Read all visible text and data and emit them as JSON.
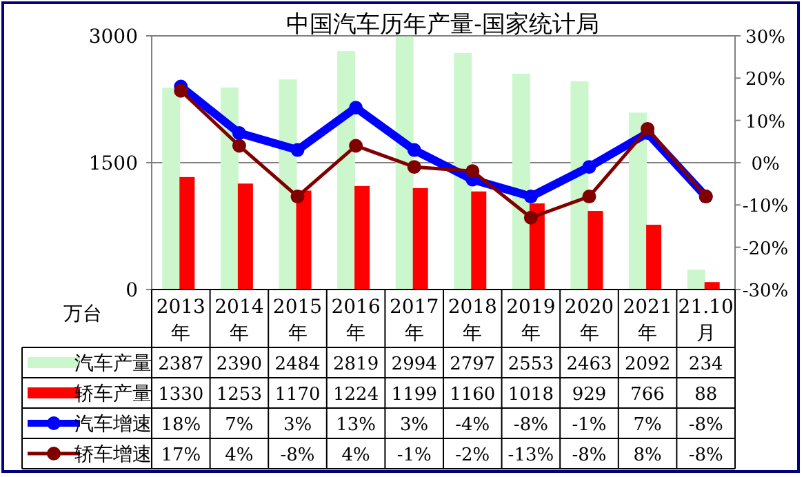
{
  "chart_data": {
    "type": "bar",
    "title": "中国汽车历年产量-国家统计局",
    "ylabel": "万台",
    "categories": [
      "2013年",
      "2014年",
      "2015年",
      "2016年",
      "2017年",
      "2018年",
      "2019年",
      "2020年",
      "2021年",
      "21.10月"
    ],
    "series": [
      {
        "name": "汽车产量",
        "type": "bar",
        "color": "#ccf7cc",
        "values": [
          2387,
          2390,
          2484,
          2819,
          2994,
          2797,
          2553,
          2463,
          2092,
          234
        ],
        "value_labels": [
          "2387",
          "2390",
          "2484",
          "2819",
          "2994",
          "2797",
          "2553",
          "2463",
          "2092",
          "234"
        ]
      },
      {
        "name": "轿车产量",
        "type": "bar",
        "color": "#ff0000",
        "values": [
          1330,
          1253,
          1170,
          1224,
          1199,
          1160,
          1018,
          929,
          766,
          88
        ],
        "value_labels": [
          "1330",
          "1253",
          "1170",
          "1224",
          "1199",
          "1160",
          "1018",
          "929",
          "766",
          "88"
        ]
      },
      {
        "name": "汽车增速",
        "type": "line",
        "axis": "y2",
        "color": "#0000ff",
        "values": [
          18,
          7,
          3,
          13,
          3,
          -4,
          -8,
          -1,
          7,
          -8
        ],
        "value_labels": [
          "18%",
          "7%",
          "3%",
          "13%",
          "3%",
          "-4%",
          "-8%",
          "-1%",
          "7%",
          "-8%"
        ]
      },
      {
        "name": "轿车增速",
        "type": "line",
        "axis": "y2",
        "color": "#800000",
        "values": [
          17,
          4,
          -8,
          4,
          -1,
          -2,
          -13,
          -8,
          8,
          -8
        ],
        "value_labels": [
          "17%",
          "4%",
          "-8%",
          "4%",
          "-1%",
          "-2%",
          "-13%",
          "-8%",
          "8%",
          "-8%"
        ]
      }
    ],
    "ylim": [
      0,
      3000
    ],
    "yticks": [
      0,
      1500,
      3000
    ],
    "y2lim": [
      -30,
      30
    ],
    "y2ticks": [
      {
        "value": -30,
        "label": "-30%"
      },
      {
        "value": -20,
        "label": "-20%"
      },
      {
        "value": -10,
        "label": "-10%"
      },
      {
        "value": 0,
        "label": "0%"
      },
      {
        "value": 10,
        "label": "10%"
      },
      {
        "value": 20,
        "label": "20%"
      },
      {
        "value": 30,
        "label": "30%"
      }
    ],
    "grid": "y",
    "legend": "bottom",
    "marker": "circle"
  }
}
